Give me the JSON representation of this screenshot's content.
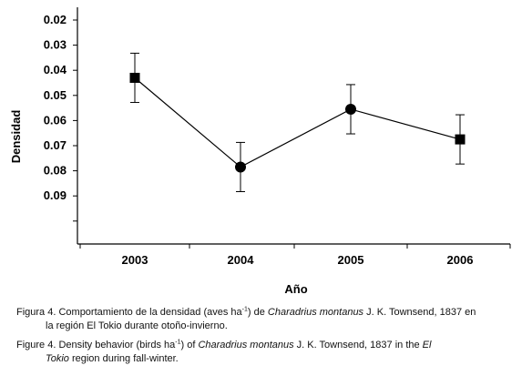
{
  "chart_data": {
    "type": "line",
    "xlabel": "Año",
    "ylabel": "Densidad",
    "x": [
      "2003",
      "2004",
      "2005",
      "2006"
    ],
    "y_ticks": [
      "0.02",
      "0.03",
      "0.04",
      "0.05",
      "0.06",
      "0.07",
      "0.08",
      "0.09"
    ],
    "y_axis_reversed": true,
    "ylim": [
      0.02,
      0.11
    ],
    "series": [
      {
        "values": [
          0.043,
          0.0785,
          0.0555,
          0.0675
        ],
        "error": [
          0.0098,
          0.0098,
          0.0098,
          0.0098
        ],
        "markers": [
          "square",
          "circle",
          "circle",
          "square"
        ],
        "color": "#000000"
      }
    ],
    "grid": false,
    "legend": "none"
  },
  "caption": {
    "es_prefix": "Figura 4. Comportamiento de la densidad (aves ha",
    "es_sup": "-1",
    "es_mid": ") de ",
    "es_species": "Charadrius montanus",
    "es_rest_line1": " J. K. Townsend, 1837 en",
    "es_line2": "la región El Tokio durante otoño-invierno.",
    "en_prefix": "Figure 4. Density behavior (birds ha",
    "en_sup": "-1",
    "en_mid": ") of ",
    "en_species": "Charadrius montanus",
    "en_rest_line1": " J. K. Townsend, 1837 in the ",
    "en_place_a": "El",
    "en_place_b": "Tokio",
    "en_line2_rest": " region during fall-winter."
  }
}
